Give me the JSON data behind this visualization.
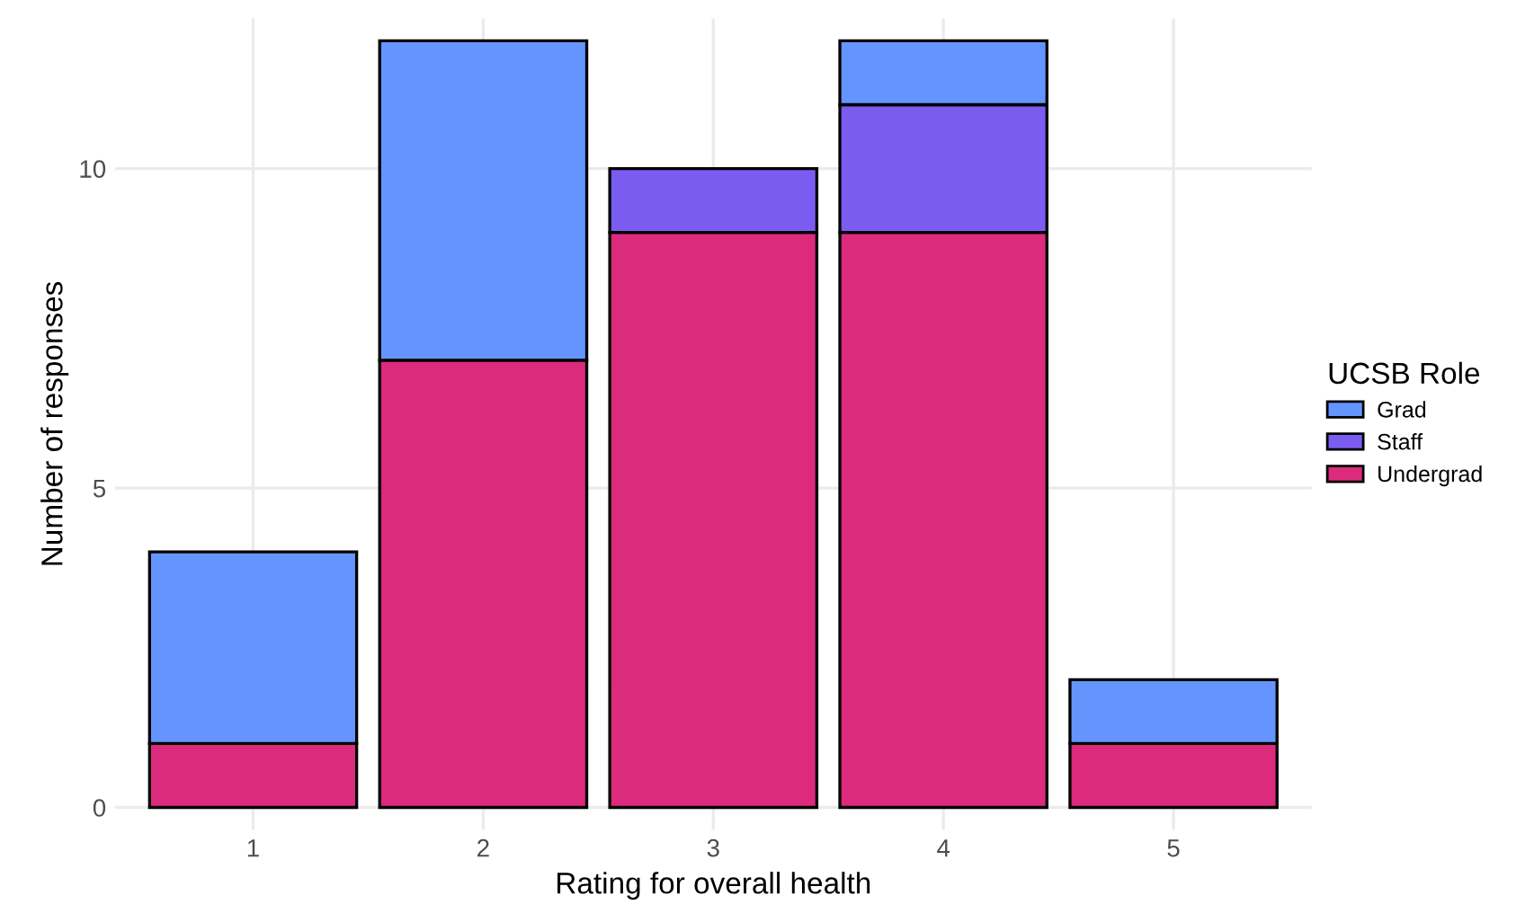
{
  "chart_data": {
    "type": "bar",
    "stacked": true,
    "xlabel": "Rating for overall health",
    "ylabel": "Number of responses",
    "legend_title": "UCSB Role",
    "categories": [
      "1",
      "2",
      "3",
      "4",
      "5"
    ],
    "series": [
      {
        "name": "Undergrad",
        "color": "#dc2a7d",
        "values": [
          1,
          7,
          9,
          9,
          1
        ]
      },
      {
        "name": "Staff",
        "color": "#7b5cf0",
        "values": [
          0,
          0,
          1,
          2,
          0
        ]
      },
      {
        "name": "Grad",
        "color": "#6495ff",
        "values": [
          3,
          5,
          0,
          1,
          1
        ]
      }
    ],
    "ylim": [
      -0.35,
      12.35
    ],
    "yticks": [
      0,
      5,
      10
    ],
    "grid": true,
    "legend": "right"
  }
}
